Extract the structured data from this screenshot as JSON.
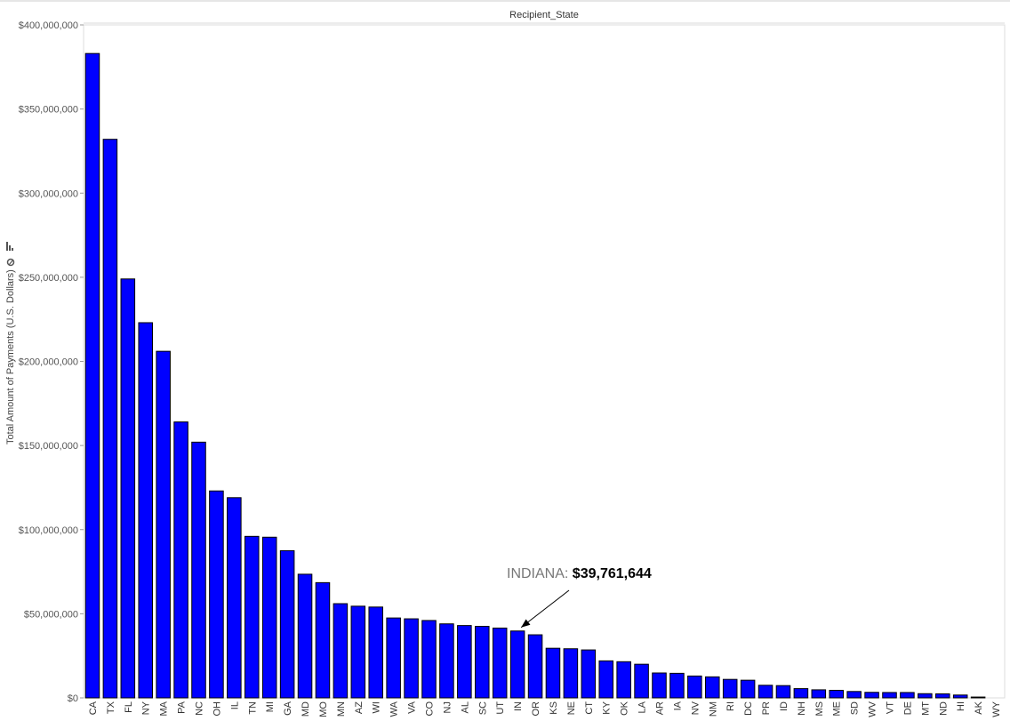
{
  "chart_data": {
    "type": "bar",
    "title": "Recipient_State",
    "ylabel": "Total Amount of Payments (U.S. Dollars)",
    "xlabel": "",
    "ylim": [
      0,
      400000000
    ],
    "yticks": [
      0,
      50000000,
      100000000,
      150000000,
      200000000,
      250000000,
      300000000,
      350000000,
      400000000
    ],
    "ytick_labels": [
      "$0",
      "$50,000,000",
      "$100,000,000",
      "$150,000,000",
      "$200,000,000",
      "$250,000,000",
      "$300,000,000",
      "$350,000,000",
      "$400,000,000"
    ],
    "bar_color": "#0000ff",
    "categories": [
      "CA",
      "TX",
      "FL",
      "NY",
      "MA",
      "PA",
      "NC",
      "OH",
      "IL",
      "TN",
      "MI",
      "GA",
      "MD",
      "MO",
      "MN",
      "AZ",
      "WI",
      "WA",
      "VA",
      "CO",
      "NJ",
      "AL",
      "SC",
      "UT",
      "IN",
      "OR",
      "KS",
      "NE",
      "CT",
      "KY",
      "OK",
      "LA",
      "AR",
      "IA",
      "NV",
      "NM",
      "RI",
      "DC",
      "PR",
      "ID",
      "NH",
      "MS",
      "ME",
      "SD",
      "WV",
      "VT",
      "DE",
      "MT",
      "ND",
      "HI",
      "AK",
      "WY"
    ],
    "values": [
      383000000,
      332000000,
      249000000,
      223000000,
      206000000,
      164000000,
      152000000,
      123000000,
      119000000,
      96000000,
      95500000,
      87500000,
      73500000,
      68500000,
      56000000,
      54500000,
      54000000,
      47500000,
      47000000,
      46000000,
      44000000,
      43000000,
      42500000,
      41500000,
      39761644,
      37500000,
      29500000,
      29200000,
      28500000,
      22000000,
      21500000,
      20000000,
      14800000,
      14600000,
      13000000,
      12500000,
      11000000,
      10500000,
      7500000,
      7300000,
      5500000,
      4800000,
      4500000,
      3800000,
      3300000,
      3200000,
      3200000,
      2500000,
      2400000,
      1700000,
      500000,
      0
    ],
    "annotation": {
      "category": "IN",
      "label": "INDIANA:",
      "value_text": "$39,761,644"
    }
  }
}
